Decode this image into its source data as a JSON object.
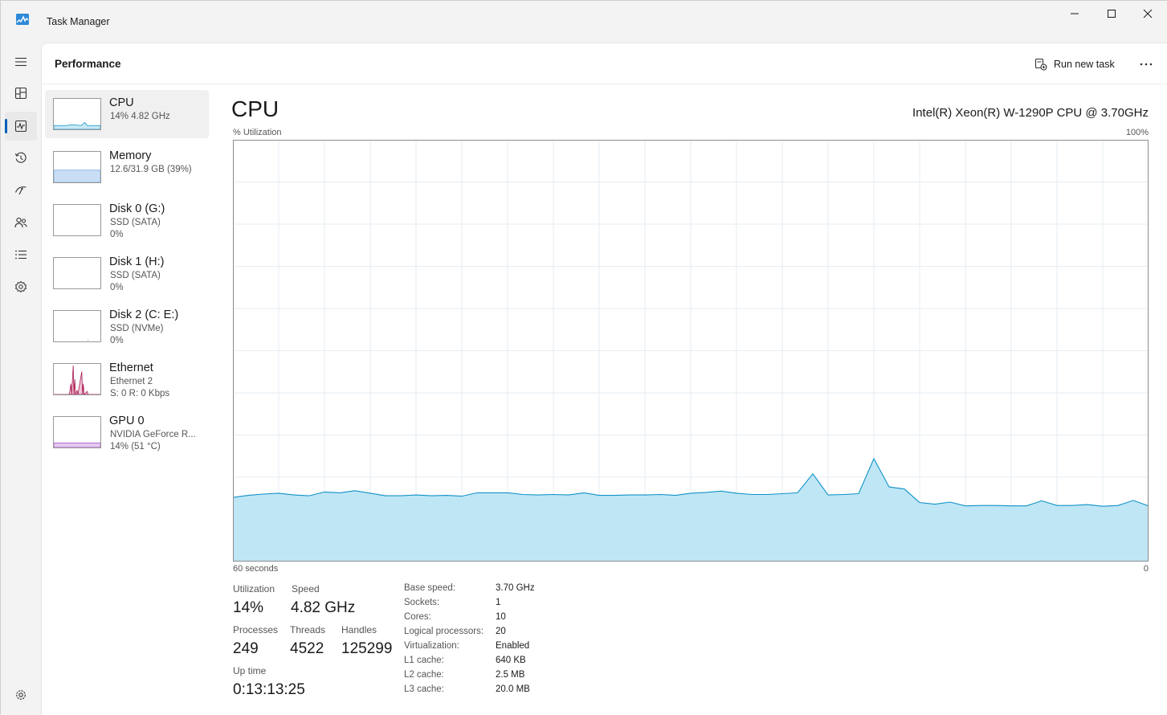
{
  "window": {
    "title": "Task Manager"
  },
  "header": {
    "title": "Performance",
    "run_task_label": "Run new task"
  },
  "nav": {
    "items": [
      "hamburger-icon",
      "processes-icon",
      "performance-icon",
      "app-history-icon",
      "startup-apps-icon",
      "users-icon",
      "details-icon",
      "services-icon",
      "settings-icon"
    ],
    "active": "performance-icon",
    "accent": "#005fb8"
  },
  "devices": [
    {
      "name": "CPU",
      "line1": "14% 4.82 GHz",
      "line2": "",
      "selected": true,
      "color": "#1192c8"
    },
    {
      "name": "Memory",
      "line1": "12.6/31.9 GB (39%)",
      "line2": "",
      "color": "#6fa4de"
    },
    {
      "name": "Disk 0 (G:)",
      "line1": "SSD (SATA)",
      "line2": "0%",
      "color": "#4da64d"
    },
    {
      "name": "Disk 1 (H:)",
      "line1": "SSD (SATA)",
      "line2": "0%",
      "color": "#4da64d"
    },
    {
      "name": "Disk 2 (C: E:)",
      "line1": "SSD (NVMe)",
      "line2": "0%",
      "color": "#4da64d"
    },
    {
      "name": "Ethernet",
      "line1": "Ethernet 2",
      "line2": "S: 0 R: 0 Kbps",
      "color": "#a6124d"
    },
    {
      "name": "GPU 0",
      "line1": "NVIDIA GeForce R...",
      "line2": "14% (51 °C)",
      "color": "#a44fc7"
    }
  ],
  "cpu": {
    "title": "CPU",
    "model": "Intel(R) Xeon(R) W-1290P CPU @ 3.70GHz",
    "graph_ylabel": "% Utilization",
    "graph_ymax": "100%",
    "graph_xleft": "60 seconds",
    "graph_xright": "0",
    "stats": {
      "utilization_label": "Utilization",
      "utilization": "14%",
      "speed_label": "Speed",
      "speed": "4.82 GHz",
      "processes_label": "Processes",
      "processes": "249",
      "threads_label": "Threads",
      "threads": "4522",
      "handles_label": "Handles",
      "handles": "125299",
      "uptime_label": "Up time",
      "uptime": "0:13:13:25"
    },
    "specs": [
      {
        "k": "Base speed:",
        "v": "3.70 GHz"
      },
      {
        "k": "Sockets:",
        "v": "1"
      },
      {
        "k": "Cores:",
        "v": "10"
      },
      {
        "k": "Logical processors:",
        "v": "20"
      },
      {
        "k": "Virtualization:",
        "v": "Enabled"
      },
      {
        "k": "L1 cache:",
        "v": "640 KB"
      },
      {
        "k": "L2 cache:",
        "v": "2.5 MB"
      },
      {
        "k": "L3 cache:",
        "v": "20.0 MB"
      }
    ]
  },
  "chart_data": {
    "type": "area",
    "x": [
      60,
      59,
      58,
      57,
      56,
      55,
      54,
      53,
      52,
      51,
      50,
      49,
      48,
      47,
      46,
      45,
      44,
      43,
      42,
      41,
      40,
      39,
      38,
      37,
      36,
      35,
      34,
      33,
      32,
      31,
      30,
      29,
      28,
      27,
      26,
      25,
      24,
      23,
      22,
      21,
      20,
      19,
      18,
      17,
      16,
      15,
      14,
      13,
      12,
      11,
      10,
      9,
      8,
      7,
      6,
      5,
      4,
      3,
      2,
      1,
      0
    ],
    "values": [
      15.2,
      15.7,
      16.0,
      16.2,
      15.8,
      15.6,
      16.5,
      16.3,
      16.8,
      16.2,
      15.6,
      15.6,
      15.8,
      15.6,
      15.7,
      15.5,
      16.3,
      16.3,
      16.3,
      15.9,
      15.8,
      15.9,
      15.8,
      16.3,
      15.7,
      15.7,
      15.8,
      15.8,
      15.9,
      15.7,
      16.2,
      16.4,
      16.7,
      16.2,
      15.9,
      15.9,
      16.1,
      16.3,
      20.8,
      15.8,
      15.9,
      16.1,
      24.4,
      17.7,
      17.2,
      14.0,
      13.6,
      14.1,
      13.2,
      13.3,
      13.3,
      13.2,
      13.2,
      14.4,
      13.3,
      13.3,
      13.5,
      13.1,
      13.3,
      14.5,
      13.2
    ],
    "xlabel": "60 seconds",
    "ylabel": "% Utilization",
    "ylim": [
      0,
      100
    ],
    "xlim": [
      60,
      0
    ],
    "grid": true,
    "line_color": "#1192c8",
    "fill_color": "#bfe6f5"
  }
}
